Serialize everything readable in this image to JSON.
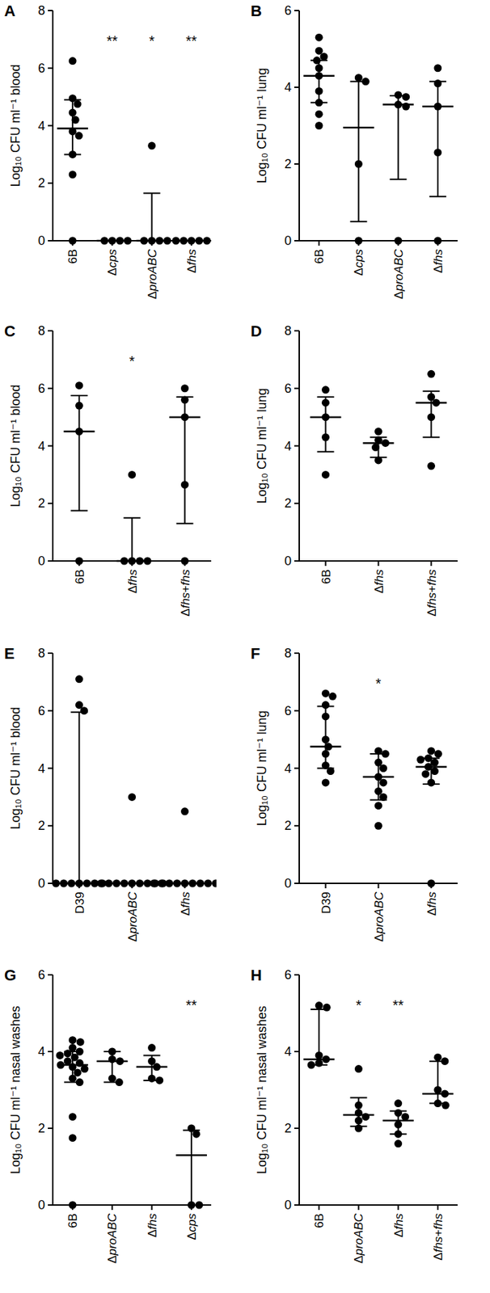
{
  "chart_data": [
    {
      "type": "scatter",
      "title": "A",
      "y_label": "Log₁₀ CFU ml⁻¹ blood",
      "grid": false,
      "categories": [
        "6B",
        "Δcps",
        "ΔproABC",
        "Δfhs"
      ],
      "ylim": [
        0,
        8
      ],
      "yticks": [
        0,
        2,
        4,
        6,
        8
      ],
      "values": [
        [
          6.25,
          4.95,
          4.75,
          4.45,
          4.2,
          3.8,
          3.65,
          3.0,
          2.3,
          0
        ],
        [
          0,
          0,
          0,
          0
        ],
        [
          3.3,
          0,
          0,
          0,
          0
        ],
        [
          0,
          0,
          0,
          0,
          0
        ]
      ],
      "median": [
        3.9,
        0,
        0,
        0
      ],
      "iqr_low": [
        3.0,
        0,
        0,
        0
      ],
      "iqr_high": [
        4.9,
        0,
        1.65,
        0
      ],
      "significance": [
        null,
        "**",
        "*",
        "**"
      ]
    },
    {
      "type": "scatter",
      "title": "B",
      "y_label": "Log₁₀ CFU ml⁻¹ lung",
      "grid": false,
      "categories": [
        "6B",
        "Δcps",
        "ΔproABC",
        "Δfhs"
      ],
      "ylim": [
        0,
        6
      ],
      "yticks": [
        0,
        2,
        4,
        6
      ],
      "values": [
        [
          5.3,
          4.95,
          4.8,
          4.7,
          4.5,
          4.3,
          3.9,
          3.6,
          3.3,
          3.0
        ],
        [
          4.25,
          4.15,
          2.0,
          0
        ],
        [
          3.8,
          3.75,
          3.55,
          3.5,
          0
        ],
        [
          4.5,
          4.1,
          3.5,
          2.3,
          0
        ]
      ],
      "median": [
        4.3,
        2.95,
        3.55,
        3.5
      ],
      "iqr_low": [
        3.6,
        0.5,
        1.6,
        1.15
      ],
      "iqr_high": [
        4.7,
        4.15,
        3.78,
        4.15
      ],
      "significance": [
        null,
        null,
        null,
        null
      ]
    },
    {
      "type": "scatter",
      "title": "C",
      "y_label": "Log₁₀ CFU ml⁻¹ blood",
      "grid": false,
      "categories": [
        "6B",
        "Δfhs",
        "Δfhs+fhs"
      ],
      "ylim": [
        0,
        8
      ],
      "yticks": [
        0,
        2,
        4,
        6,
        8
      ],
      "values": [
        [
          6.1,
          5.4,
          4.5,
          0
        ],
        [
          3.0,
          0,
          0,
          0,
          0
        ],
        [
          6.0,
          5.6,
          5.0,
          2.65,
          0
        ]
      ],
      "median": [
        4.5,
        0,
        5.0
      ],
      "iqr_low": [
        1.75,
        0,
        1.3
      ],
      "iqr_high": [
        5.75,
        1.5,
        5.7
      ],
      "significance": [
        null,
        "*",
        null
      ]
    },
    {
      "type": "scatter",
      "title": "D",
      "y_label": "Log₁₀ CFU ml⁻¹ lung",
      "grid": false,
      "categories": [
        "6B",
        "Δfhs",
        "Δfhs+fhs"
      ],
      "ylim": [
        0,
        8
      ],
      "yticks": [
        0,
        2,
        4,
        6,
        8
      ],
      "values": [
        [
          5.95,
          5.5,
          5.0,
          4.3,
          3.0
        ],
        [
          4.5,
          4.2,
          4.1,
          3.95,
          3.5
        ],
        [
          6.5,
          5.7,
          5.5,
          5.0,
          3.3
        ]
      ],
      "median": [
        5.0,
        4.1,
        5.5
      ],
      "iqr_low": [
        3.8,
        3.6,
        4.3
      ],
      "iqr_high": [
        5.7,
        4.3,
        5.9
      ],
      "significance": [
        null,
        null,
        null
      ]
    },
    {
      "type": "scatter",
      "title": "E",
      "y_label": "Log₁₀ CFU ml⁻¹ blood",
      "grid": false,
      "categories": [
        "D39",
        "ΔproABC",
        "Δfhs"
      ],
      "ylim": [
        0,
        8
      ],
      "yticks": [
        0,
        2,
        4,
        6,
        8
      ],
      "values": [
        [
          7.1,
          6.2,
          6.0,
          0,
          0,
          0,
          0,
          0,
          0,
          0
        ],
        [
          3.0,
          0,
          0,
          0,
          0,
          0,
          0,
          0,
          0,
          0
        ],
        [
          2.5,
          0,
          0,
          0,
          0,
          0,
          0,
          0,
          0,
          0
        ]
      ],
      "median": [
        0,
        0,
        0
      ],
      "iqr_low": [
        0,
        0,
        0
      ],
      "iqr_high": [
        5.95,
        0,
        0
      ],
      "significance": [
        null,
        null,
        null
      ]
    },
    {
      "type": "scatter",
      "title": "F",
      "y_label": "Log₁₀ CFU ml⁻¹ lung",
      "grid": false,
      "categories": [
        "D39",
        "ΔproABC",
        "Δfhs"
      ],
      "ylim": [
        0,
        8
      ],
      "yticks": [
        0,
        2,
        4,
        6,
        8
      ],
      "values": [
        [
          6.6,
          6.5,
          6.2,
          5.8,
          5.0,
          4.75,
          4.5,
          4.1,
          3.9,
          3.5
        ],
        [
          4.6,
          4.5,
          4.2,
          4.0,
          3.7,
          3.5,
          3.2,
          3.0,
          2.7,
          2.0
        ],
        [
          4.6,
          4.5,
          4.35,
          4.3,
          4.2,
          4.05,
          3.9,
          3.8,
          3.5,
          0
        ]
      ],
      "median": [
        4.75,
        3.7,
        4.05
      ],
      "iqr_low": [
        4.0,
        2.9,
        3.45
      ],
      "iqr_high": [
        6.15,
        4.5,
        4.35
      ],
      "significance": [
        null,
        "*",
        null
      ]
    },
    {
      "type": "scatter",
      "title": "G",
      "y_label": "Log₁₀ CFU ml⁻¹ nasal washes",
      "grid": false,
      "categories": [
        "6B",
        "ΔproABC",
        "Δfhs",
        "Δcps"
      ],
      "ylim": [
        0,
        6
      ],
      "yticks": [
        0,
        2,
        4,
        6
      ],
      "values": [
        [
          4.3,
          4.25,
          4.1,
          4.0,
          3.95,
          3.9,
          3.85,
          3.75,
          3.7,
          3.65,
          3.6,
          3.55,
          3.45,
          3.3,
          3.2,
          2.3,
          1.75,
          0
        ],
        [
          4.0,
          3.8,
          3.75,
          3.3,
          3.2
        ],
        [
          4.1,
          3.75,
          3.6,
          3.3,
          3.25
        ],
        [
          2.0,
          1.85,
          0,
          0
        ]
      ],
      "median": [
        3.65,
        3.75,
        3.6,
        1.3
      ],
      "iqr_low": [
        3.2,
        3.2,
        3.25,
        0
      ],
      "iqr_high": [
        4.0,
        4.0,
        3.9,
        1.95
      ],
      "significance": [
        null,
        null,
        null,
        "**"
      ]
    },
    {
      "type": "scatter",
      "title": "H",
      "y_label": "Log₁₀ CFU ml⁻¹ nasal washes",
      "grid": false,
      "categories": [
        "6B",
        "ΔproABC",
        "Δfhs",
        "Δfhs+fhs"
      ],
      "ylim": [
        0,
        6
      ],
      "yticks": [
        0,
        2,
        4,
        6
      ],
      "values": [
        [
          5.2,
          5.15,
          3.9,
          3.8,
          3.7,
          3.65
        ],
        [
          3.55,
          2.6,
          2.4,
          2.3,
          2.2,
          2.0
        ],
        [
          2.65,
          2.4,
          2.3,
          2.1,
          1.85,
          1.6
        ],
        [
          3.85,
          3.75,
          3.0,
          2.9,
          2.65,
          2.6
        ]
      ],
      "median": [
        3.8,
        2.35,
        2.2,
        2.9
      ],
      "iqr_low": [
        3.65,
        2.05,
        1.85,
        2.65
      ],
      "iqr_high": [
        5.1,
        2.8,
        2.45,
        3.75
      ],
      "significance": [
        null,
        "*",
        "**",
        null
      ]
    }
  ]
}
